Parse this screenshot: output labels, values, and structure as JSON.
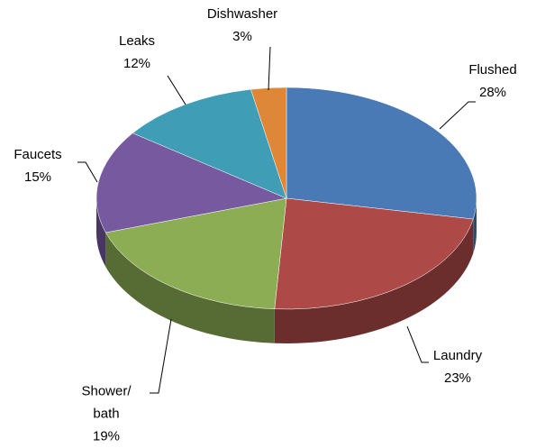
{
  "chart_data": {
    "type": "pie",
    "categories": [
      "Flushed",
      "Laundry",
      "Shower/ bath",
      "Faucets",
      "Leaks",
      "Dishwasher"
    ],
    "values": [
      28,
      23,
      19,
      15,
      12,
      3
    ],
    "value_labels": [
      "28%",
      "23%",
      "19%",
      "15%",
      "12%",
      "3%"
    ],
    "colors": [
      "#4a7ab5",
      "#ad4a47",
      "#8dad55",
      "#76599f",
      "#3f9db5",
      "#df8738"
    ]
  }
}
